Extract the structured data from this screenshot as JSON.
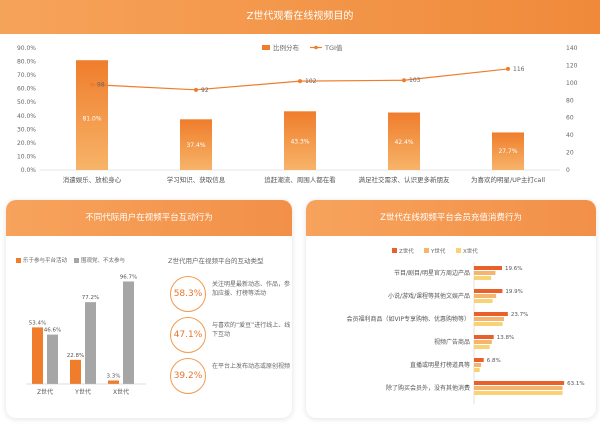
{
  "header": {
    "title": "Z世代观看在线视频目的"
  },
  "top_chart": {
    "legend": {
      "bar_label": "比例分布",
      "line_label": "TGI值"
    },
    "y_left_ticks": [
      "0.0%",
      "10.0%",
      "20.0%",
      "30.0%",
      "40.0%",
      "50.0%",
      "60.0%",
      "70.0%",
      "80.0%",
      "90.0%"
    ],
    "y_right_ticks": [
      "0",
      "20",
      "40",
      "60",
      "80",
      "100",
      "120",
      "140"
    ]
  },
  "left_panel": {
    "title": "不同代际用户在视频平台互动行为",
    "legend": [
      "乐于参与平台活动",
      "围观党、不太参与"
    ],
    "right_title": "Z世代用户在视频平台的互动类型",
    "circles": [
      {
        "pct": "58.3%",
        "text": "关注明星最新动态、作品，参加应援、打榜等活动"
      },
      {
        "pct": "47.1%",
        "text": "与喜欢的“爱豆”进行线上、线下互动"
      },
      {
        "pct": "39.2%",
        "text": "在平台上发布动态或原创视频"
      }
    ]
  },
  "right_panel": {
    "title": "Z世代在线视频平台会员充值消费行为"
  },
  "colors": {
    "orange": "#ef7d2c",
    "light_orange": "#f6b56f",
    "yellow": "#f8d274",
    "gray": "#a6a6a6",
    "red_orange": "#e9602a"
  },
  "chart_data": [
    {
      "type": "bar+line",
      "title": "Z世代观看在线视频目的",
      "categories": [
        "消遣娱乐、放松身心",
        "学习知识、获取信息",
        "追赶潮流、周围人都在看",
        "满足社交需求、认识更多新朋友",
        "为喜欢的明星/UP主打call"
      ],
      "series": [
        {
          "name": "比例分布",
          "type": "bar",
          "values": [
            81.0,
            37.4,
            43.3,
            42.4,
            27.7
          ],
          "labels": [
            "81.0%",
            "37.4%",
            "43.3%",
            "42.4%",
            "27.7%"
          ]
        },
        {
          "name": "TGI值",
          "type": "line",
          "axis": "right",
          "values": [
            98,
            92,
            102,
            103,
            116
          ]
        }
      ],
      "ylim": [
        0,
        90
      ],
      "y2lim": [
        0,
        140
      ]
    },
    {
      "type": "bar",
      "categories": [
        "Z世代",
        "Y世代",
        "X世代"
      ],
      "series": [
        {
          "name": "乐于参与平台活动",
          "values": [
            53.4,
            22.8,
            3.3
          ],
          "labels": [
            "53.4%",
            "22.8%",
            "3.3%"
          ]
        },
        {
          "name": "围观党、不太参与",
          "values": [
            46.6,
            77.2,
            96.7
          ],
          "labels": [
            "46.6%",
            "77.2%",
            "96.7%"
          ]
        }
      ],
      "ylim": [
        0,
        100
      ]
    },
    {
      "type": "bar",
      "orientation": "horizontal",
      "categories": [
        "节目/剧目/明星官方周边产品",
        "小说/游戏/课程等其他文娱产品",
        "会员福利商品（如VIP专享购物、优惠购物等）",
        "视频广告商品",
        "直播或明星打榜道具等",
        "除了购买会员外，没有其他消费"
      ],
      "series": [
        {
          "name": "Z世代",
          "values": [
            19.6,
            19.9,
            23.7,
            13.8,
            6.8,
            63.1
          ],
          "labels": [
            "19.6%",
            "19.9%",
            "23.7%",
            "13.8%",
            "6.8%",
            "63.1%"
          ]
        },
        {
          "name": "Y世代",
          "values": [
            15.0,
            15.5,
            21.0,
            12.5,
            5.0,
            62.0
          ]
        },
        {
          "name": "X世代",
          "values": [
            12.0,
            13.0,
            20.0,
            11.0,
            4.0,
            62.0
          ]
        }
      ],
      "xlim": [
        0,
        70
      ]
    }
  ]
}
